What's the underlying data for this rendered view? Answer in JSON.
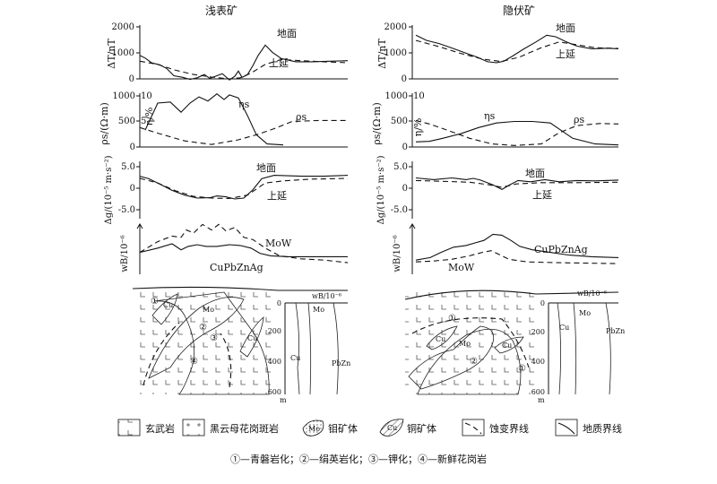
{
  "titles": {
    "left": "浅表矿",
    "right": "隐伏矿"
  },
  "magnetic": {
    "ylabel": "ΔT/nT",
    "ticks": [
      "2000",
      "1000",
      "0"
    ],
    "labels": {
      "ground": "地面",
      "upward": "上延"
    },
    "left": {
      "ground": [
        [
          0,
          900
        ],
        [
          6,
          800
        ],
        [
          13,
          620
        ],
        [
          22,
          540
        ],
        [
          30,
          400
        ],
        [
          38,
          120
        ],
        [
          48,
          60
        ],
        [
          56,
          -20
        ],
        [
          64,
          40
        ],
        [
          72,
          170
        ],
        [
          78,
          20
        ],
        [
          86,
          120
        ],
        [
          92,
          200
        ],
        [
          100,
          -40
        ],
        [
          106,
          100
        ],
        [
          110,
          300
        ],
        [
          114,
          60
        ],
        [
          120,
          160
        ],
        [
          126,
          500
        ],
        [
          132,
          900
        ],
        [
          140,
          1300
        ],
        [
          148,
          1020
        ],
        [
          158,
          780
        ],
        [
          174,
          660
        ],
        [
          192,
          660
        ],
        [
          212,
          680
        ],
        [
          232,
          700
        ]
      ],
      "upward": [
        [
          0,
          680
        ],
        [
          20,
          560
        ],
        [
          40,
          330
        ],
        [
          60,
          170
        ],
        [
          80,
          70
        ],
        [
          100,
          0
        ],
        [
          112,
          40
        ],
        [
          124,
          220
        ],
        [
          140,
          560
        ],
        [
          158,
          740
        ],
        [
          180,
          700
        ],
        [
          205,
          660
        ],
        [
          232,
          620
        ]
      ]
    },
    "right": {
      "ground": [
        [
          0,
          1680
        ],
        [
          12,
          1480
        ],
        [
          26,
          1360
        ],
        [
          40,
          1190
        ],
        [
          55,
          1000
        ],
        [
          68,
          840
        ],
        [
          80,
          660
        ],
        [
          90,
          620
        ],
        [
          98,
          680
        ],
        [
          108,
          880
        ],
        [
          120,
          1140
        ],
        [
          134,
          1420
        ],
        [
          146,
          1680
        ],
        [
          156,
          1620
        ],
        [
          168,
          1420
        ],
        [
          180,
          1260
        ],
        [
          196,
          1160
        ],
        [
          214,
          1180
        ],
        [
          226,
          1160
        ]
      ],
      "upward": [
        [
          0,
          1480
        ],
        [
          25,
          1250
        ],
        [
          50,
          980
        ],
        [
          75,
          760
        ],
        [
          95,
          670
        ],
        [
          115,
          830
        ],
        [
          140,
          1200
        ],
        [
          160,
          1420
        ],
        [
          178,
          1320
        ],
        [
          200,
          1200
        ],
        [
          226,
          1170
        ]
      ]
    }
  },
  "electric": {
    "ylabel": "ρs/(Ω·m)",
    "ylabel2": "η/%",
    "ticks": [
      "1000",
      "500",
      "0"
    ],
    "ticks2": [
      "10",
      "5"
    ],
    "labels": {
      "eta": "ηs",
      "rho": "ρs"
    },
    "left": {
      "eta": [
        [
          6,
          330
        ],
        [
          20,
          860
        ],
        [
          34,
          880
        ],
        [
          46,
          680
        ],
        [
          56,
          860
        ],
        [
          66,
          980
        ],
        [
          76,
          900
        ],
        [
          86,
          1040
        ],
        [
          94,
          930
        ],
        [
          100,
          1020
        ],
        [
          110,
          960
        ],
        [
          120,
          620
        ],
        [
          130,
          240
        ],
        [
          142,
          60
        ],
        [
          160,
          40
        ]
      ],
      "rho": [
        [
          0,
          380
        ],
        [
          20,
          270
        ],
        [
          50,
          120
        ],
        [
          80,
          50
        ],
        [
          110,
          140
        ],
        [
          132,
          250
        ],
        [
          150,
          360
        ],
        [
          170,
          500
        ],
        [
          200,
          520
        ],
        [
          232,
          520
        ]
      ]
    },
    "right": {
      "eta": [
        [
          0,
          100
        ],
        [
          15,
          110
        ],
        [
          30,
          170
        ],
        [
          50,
          260
        ],
        [
          70,
          380
        ],
        [
          90,
          470
        ],
        [
          110,
          500
        ],
        [
          130,
          500
        ],
        [
          150,
          470
        ],
        [
          175,
          170
        ],
        [
          200,
          60
        ],
        [
          226,
          40
        ]
      ],
      "rho": [
        [
          0,
          520
        ],
        [
          15,
          450
        ],
        [
          35,
          330
        ],
        [
          60,
          170
        ],
        [
          85,
          60
        ],
        [
          110,
          30
        ],
        [
          140,
          60
        ],
        [
          160,
          280
        ],
        [
          180,
          420
        ],
        [
          205,
          460
        ],
        [
          226,
          450
        ]
      ]
    }
  },
  "gravity": {
    "ylabel": "Δg/(10⁻⁵ m·s⁻²)",
    "ticks": [
      "5.0",
      "0",
      "-5.0"
    ],
    "labels": {
      "ground": "地面",
      "upward": "上延"
    },
    "left": {
      "ground": [
        [
          0,
          2.8
        ],
        [
          10,
          2.2
        ],
        [
          22,
          1.0
        ],
        [
          36,
          -0.5
        ],
        [
          50,
          -1.6
        ],
        [
          64,
          -2.3
        ],
        [
          78,
          -2.2
        ],
        [
          86,
          -1.8
        ],
        [
          96,
          -2.0
        ],
        [
          106,
          -2.5
        ],
        [
          116,
          -2.3
        ],
        [
          126,
          -0.4
        ],
        [
          136,
          2.2
        ],
        [
          150,
          3.0
        ],
        [
          180,
          2.8
        ],
        [
          206,
          2.8
        ],
        [
          232,
          3.0
        ]
      ],
      "upward": [
        [
          0,
          2.3
        ],
        [
          20,
          1.2
        ],
        [
          40,
          -0.6
        ],
        [
          60,
          -1.9
        ],
        [
          80,
          -2.3
        ],
        [
          100,
          -2.4
        ],
        [
          120,
          -1.6
        ],
        [
          140,
          1.2
        ],
        [
          160,
          1.7
        ],
        [
          190,
          2.1
        ],
        [
          232,
          2.3
        ]
      ]
    },
    "right": {
      "ground": [
        [
          0,
          2.4
        ],
        [
          20,
          2.0
        ],
        [
          40,
          2.4
        ],
        [
          56,
          2.0
        ],
        [
          64,
          2.3
        ],
        [
          72,
          1.9
        ],
        [
          86,
          0.8
        ],
        [
          96,
          -0.3
        ],
        [
          104,
          0.7
        ],
        [
          114,
          1.8
        ],
        [
          128,
          1.5
        ],
        [
          144,
          2.0
        ],
        [
          160,
          1.5
        ],
        [
          180,
          1.8
        ],
        [
          200,
          1.7
        ],
        [
          226,
          1.9
        ]
      ],
      "upward": [
        [
          0,
          1.8
        ],
        [
          30,
          1.6
        ],
        [
          60,
          1.4
        ],
        [
          82,
          0.8
        ],
        [
          96,
          0.2
        ],
        [
          112,
          1.0
        ],
        [
          140,
          1.3
        ],
        [
          180,
          1.3
        ],
        [
          226,
          1.4
        ]
      ]
    }
  },
  "geochem": {
    "ylabel": "wB/10⁻⁶",
    "left": {
      "labels": {
        "mow": "MoW",
        "cupbznag": "CuPbZnAg"
      },
      "mow": [
        [
          0,
          30
        ],
        [
          20,
          55
        ],
        [
          36,
          68
        ],
        [
          46,
          65
        ],
        [
          52,
          82
        ],
        [
          60,
          75
        ],
        [
          70,
          95
        ],
        [
          80,
          82
        ],
        [
          88,
          95
        ],
        [
          96,
          80
        ],
        [
          106,
          88
        ],
        [
          116,
          65
        ],
        [
          126,
          60
        ],
        [
          140,
          40
        ],
        [
          156,
          22
        ],
        [
          180,
          15
        ],
        [
          206,
          12
        ],
        [
          232,
          6
        ]
      ],
      "cupbznag": [
        [
          0,
          30
        ],
        [
          20,
          40
        ],
        [
          36,
          50
        ],
        [
          46,
          36
        ],
        [
          54,
          44
        ],
        [
          64,
          48
        ],
        [
          74,
          44
        ],
        [
          86,
          44
        ],
        [
          100,
          48
        ],
        [
          112,
          46
        ],
        [
          124,
          40
        ],
        [
          134,
          28
        ],
        [
          146,
          22
        ],
        [
          166,
          20
        ],
        [
          196,
          20
        ],
        [
          232,
          20
        ]
      ]
    },
    "right": {
      "labels": {
        "mow": "MoW",
        "cupbznag": "CuPbZnAg"
      },
      "mow": [
        [
          0,
          8
        ],
        [
          20,
          10
        ],
        [
          40,
          14
        ],
        [
          60,
          22
        ],
        [
          74,
          30
        ],
        [
          84,
          34
        ],
        [
          92,
          26
        ],
        [
          104,
          14
        ],
        [
          124,
          8
        ],
        [
          160,
          6
        ],
        [
          226,
          4
        ]
      ],
      "cupbznag": [
        [
          0,
          12
        ],
        [
          16,
          18
        ],
        [
          28,
          30
        ],
        [
          42,
          42
        ],
        [
          56,
          46
        ],
        [
          66,
          52
        ],
        [
          76,
          58
        ],
        [
          86,
          72
        ],
        [
          96,
          70
        ],
        [
          106,
          58
        ],
        [
          116,
          44
        ],
        [
          130,
          36
        ],
        [
          150,
          30
        ],
        [
          170,
          24
        ],
        [
          196,
          20
        ],
        [
          226,
          18
        ]
      ]
    }
  },
  "section": {
    "units": "wB/10⁻⁶",
    "depth_label": "m",
    "depth_ticks": [
      "0",
      "200",
      "400",
      "600"
    ],
    "col_labels": {
      "cu": "Cu",
      "mo": "Mo",
      "pbzn": "PbZn"
    },
    "ore_labels": {
      "mo": "Mo",
      "cu": "Cu"
    },
    "zone_labels": [
      "①",
      "②",
      "③",
      "④"
    ]
  },
  "legend": {
    "items": [
      {
        "id": "basalt",
        "label": "玄武岩"
      },
      {
        "id": "granite",
        "label": "黑云母花岗斑岩"
      },
      {
        "id": "mo-ore",
        "label": "钼矿体",
        "sample": "Mo"
      },
      {
        "id": "cu-ore",
        "label": "铜矿体",
        "sample": "Cu"
      },
      {
        "id": "alteration",
        "label": "蚀变界线"
      },
      {
        "id": "geology",
        "label": "地质界线"
      }
    ],
    "note": "①—青磐岩化；②—绢英岩化；③—钾化；④—新鲜花岗岩"
  }
}
